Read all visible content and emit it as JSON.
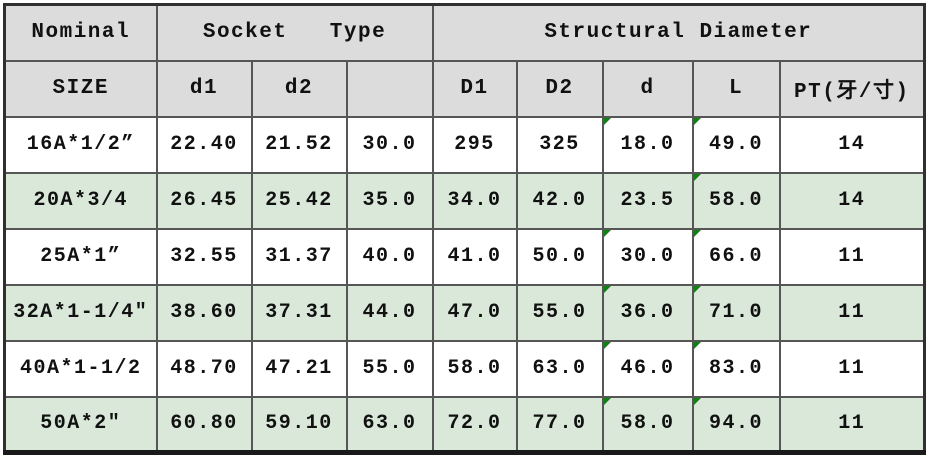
{
  "colors": {
    "header_bg": "#dcdcdc",
    "shaded_row_bg": "#d9e8d9",
    "plain_row_bg": "#ffffff",
    "grid_line": "#565656",
    "outer_border": "#303030",
    "marker_green": "#0e8410",
    "text": "#111111"
  },
  "table": {
    "header_row1": [
      {
        "label": "Nominal"
      },
      {
        "label": "Socket   Type"
      },
      {
        "label": "Structural Diameter"
      }
    ],
    "header_row2": [
      "SIZE",
      "d1",
      "d2",
      "",
      "D1",
      "D2",
      "d",
      "L",
      "PT(牙/寸)"
    ],
    "rows": [
      {
        "shaded": false,
        "markers": [
          6,
          7
        ],
        "cells": [
          "16A*1/2”",
          "22.40",
          "21.52",
          "30.0",
          "295",
          "325",
          "18.0",
          "49.0",
          "14"
        ]
      },
      {
        "shaded": true,
        "markers": [
          7
        ],
        "cells": [
          "20A*3/4",
          "26.45",
          "25.42",
          "35.0",
          "34.0",
          "42.0",
          "23.5",
          "58.0",
          "14"
        ]
      },
      {
        "shaded": false,
        "markers": [
          6,
          7
        ],
        "cells": [
          "25A*1”",
          "32.55",
          "31.37",
          "40.0",
          "41.0",
          "50.0",
          "30.0",
          "66.0",
          "11"
        ]
      },
      {
        "shaded": true,
        "markers": [
          6,
          7
        ],
        "cells": [
          "32A*1-1/4″",
          "38.60",
          "37.31",
          "44.0",
          "47.0",
          "55.0",
          "36.0",
          "71.0",
          "11"
        ]
      },
      {
        "shaded": false,
        "markers": [
          6,
          7
        ],
        "cells": [
          "40A*1-1/2",
          "48.70",
          "47.21",
          "55.0",
          "58.0",
          "63.0",
          "46.0",
          "83.0",
          "11"
        ]
      },
      {
        "shaded": true,
        "markers": [
          6,
          7
        ],
        "cells": [
          "50A*2″",
          "60.80",
          "59.10",
          "63.0",
          "72.0",
          "77.0",
          "58.0",
          "94.0",
          "11"
        ]
      }
    ]
  }
}
